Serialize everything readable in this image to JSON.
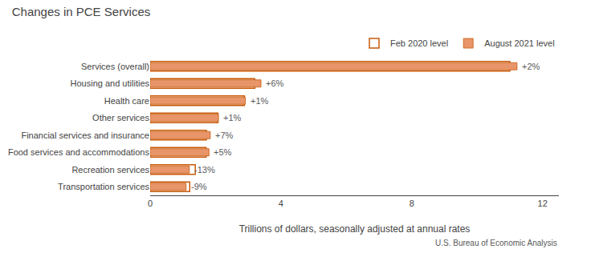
{
  "chart_data": {
    "type": "bar",
    "orientation": "horizontal",
    "title": "Changes in PCE Services",
    "x_label": "Trillions of dollars, seasonally adjusted at annual rates",
    "source": "U.S. Bureau of Economic Analysis",
    "categories": [
      "Transportation services",
      "Recreation services",
      "Food services and accommodations",
      "Financial services and insurance",
      "Other services",
      "Health care",
      "Housing and utilities",
      "Services (overall)"
    ],
    "series": [
      {
        "name": "Feb 2020 level",
        "color": "#C85A0A",
        "marker": "outline",
        "values": [
          1.21,
          1.38,
          1.71,
          1.72,
          2.07,
          2.88,
          3.2,
          11.0
        ]
      },
      {
        "name": "August 2021 level",
        "color": "#E8956A",
        "marker": "filled",
        "values": [
          1.1,
          1.2,
          1.8,
          1.84,
          2.09,
          2.91,
          3.39,
          11.22
        ]
      }
    ],
    "annotations": [
      {
        "category": "Transportation services",
        "text": "-9%"
      },
      {
        "category": "Recreation services",
        "text": "-13%"
      },
      {
        "category": "Food services and accommodations",
        "text": "+5%"
      },
      {
        "category": "Financial services and insurance",
        "text": "+7%"
      },
      {
        "category": "Other services",
        "text": "+1%"
      },
      {
        "category": "Health care",
        "text": "+1%"
      },
      {
        "category": "Housing and utilities",
        "text": "+6%"
      },
      {
        "category": "Services (overall)",
        "text": "+2%"
      }
    ],
    "xlim": [
      0,
      12.5
    ],
    "xticks": [
      0,
      4,
      8,
      12
    ],
    "grid": false,
    "legend": "upper right"
  }
}
